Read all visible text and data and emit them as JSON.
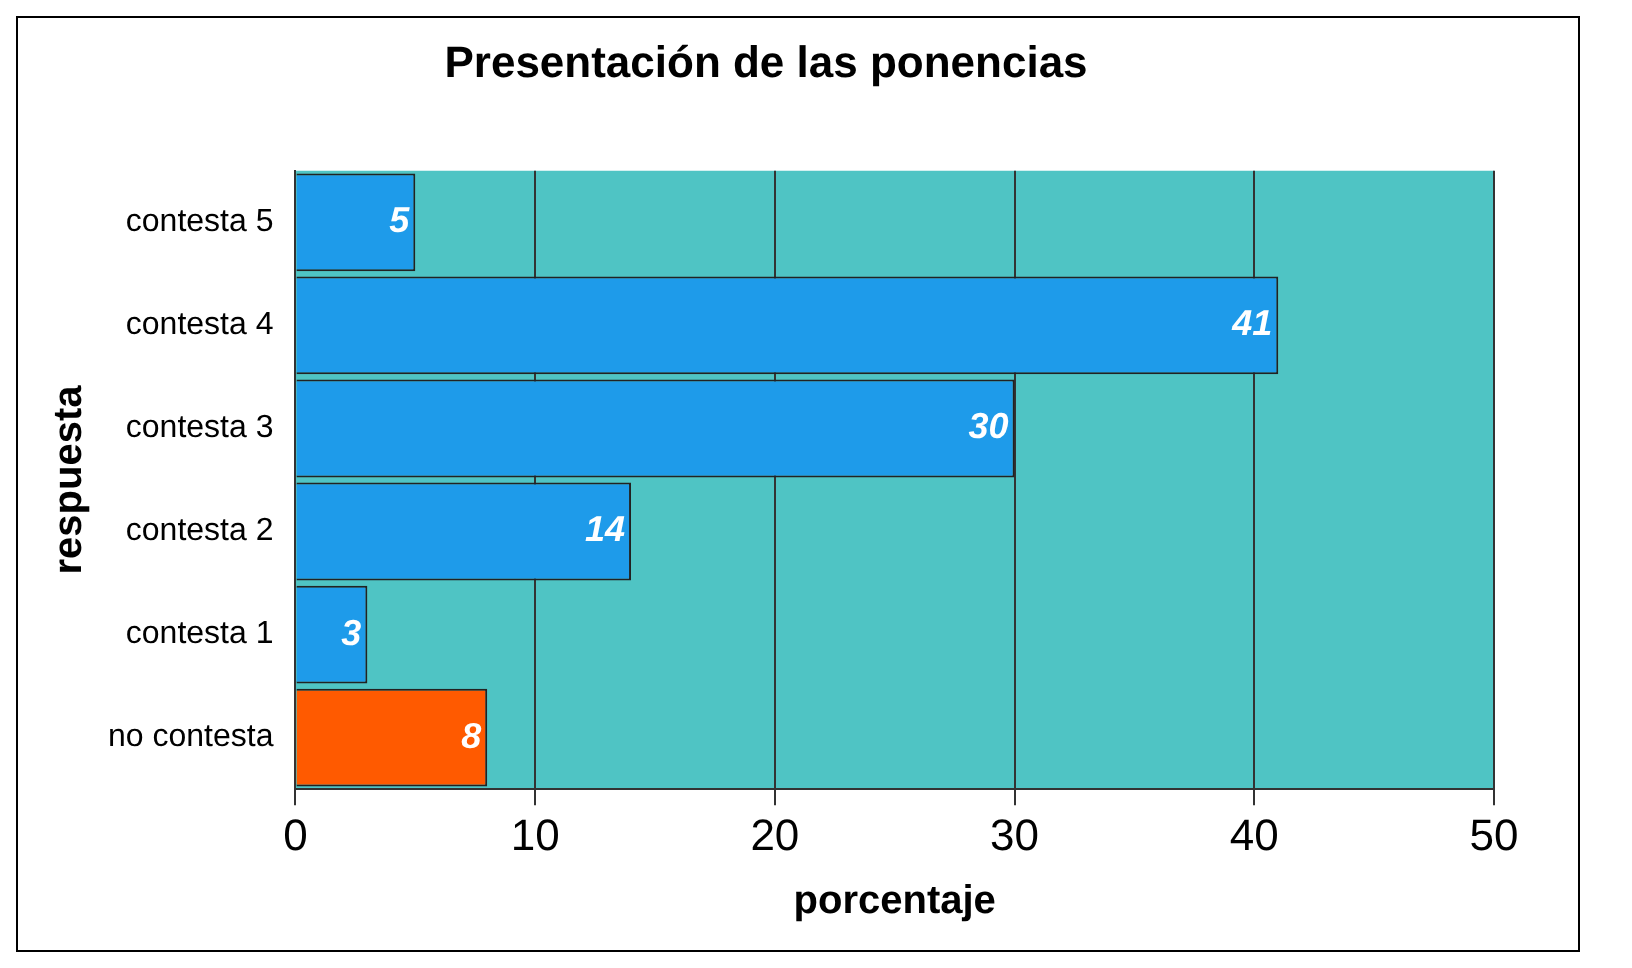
{
  "chart_data": {
    "type": "bar",
    "orientation": "horizontal",
    "title": "Presentación de las ponencias",
    "xlabel": "porcentaje",
    "ylabel": "respuesta",
    "categories": [
      "contesta 5",
      "contesta 4",
      "contesta 3",
      "contesta 2",
      "contesta 1",
      "no contesta"
    ],
    "values": [
      5,
      41,
      30,
      14,
      3,
      8
    ],
    "colors": [
      "#1e9bea",
      "#1e9bea",
      "#1e9bea",
      "#1e9bea",
      "#1e9bea",
      "#ff5a00"
    ],
    "xlim": [
      0,
      50
    ],
    "xticks": [
      0,
      10,
      20,
      30,
      40,
      50
    ],
    "grid": "x",
    "data_labels": true,
    "legend": false
  }
}
